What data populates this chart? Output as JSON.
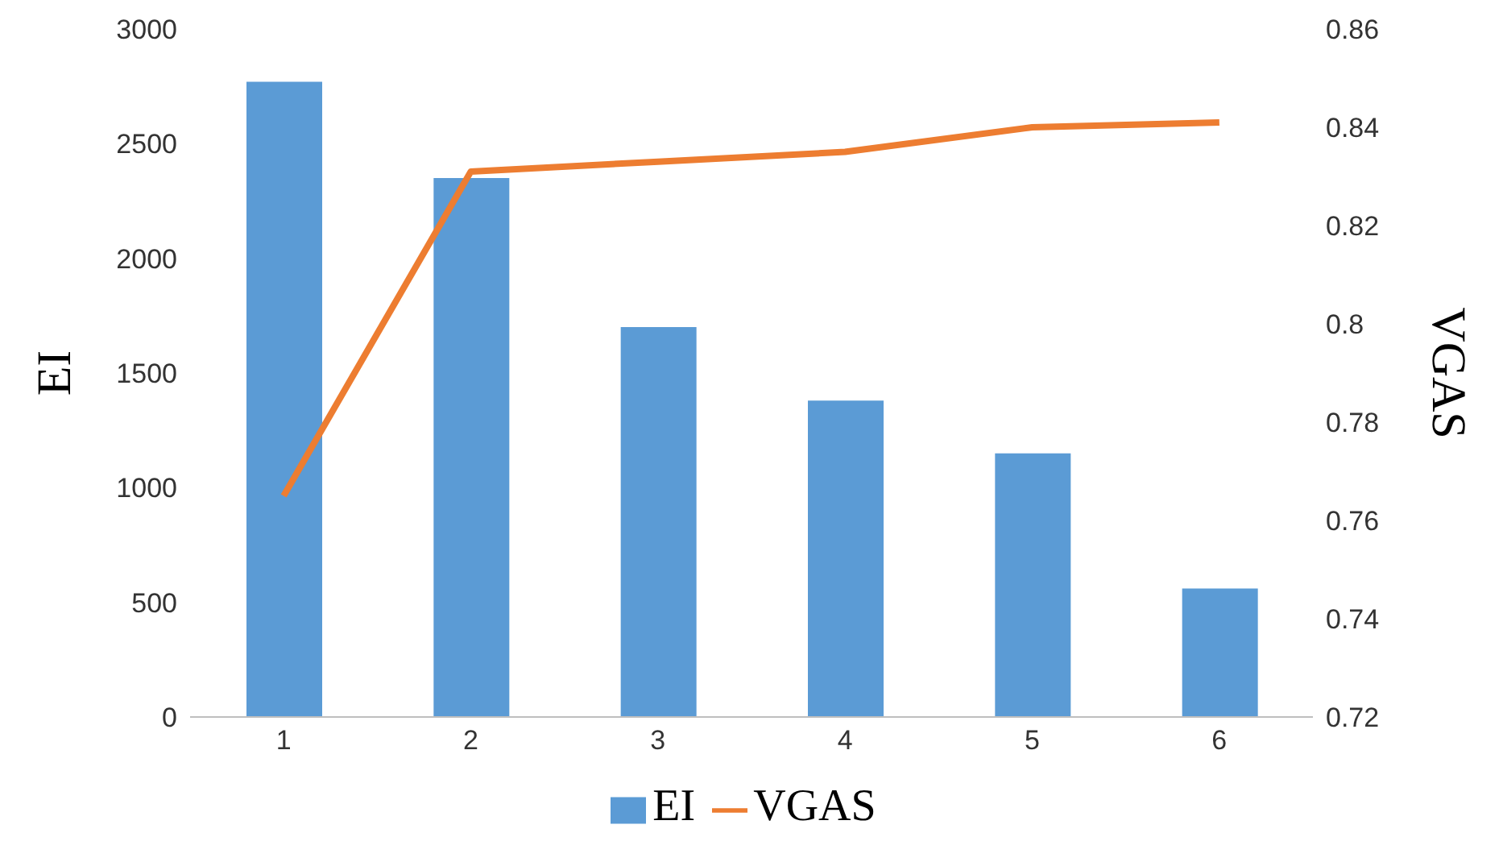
{
  "chart_data": {
    "type": "bar",
    "categories": [
      "1",
      "2",
      "3",
      "4",
      "5",
      "6"
    ],
    "xlabel": null,
    "ylabel": "EI",
    "y2label": "VGAS",
    "series": [
      {
        "name": "EI",
        "color": "#5b9bd5",
        "values": [
          2770,
          2350,
          1700,
          1380,
          1150,
          560
        ]
      },
      {
        "name": "VGAS",
        "type": "line",
        "axis": "y2",
        "color": "#ed7d31",
        "values": [
          0.765,
          0.831,
          0.833,
          0.835,
          0.84,
          0.841
        ]
      }
    ],
    "ylim": [
      0,
      3000
    ],
    "yticks": [
      0,
      500,
      1000,
      1500,
      2000,
      2500,
      3000
    ],
    "y2lim": [
      0.72,
      0.86
    ],
    "y2ticks": [
      0.72,
      0.74,
      0.76,
      0.78,
      0.8,
      0.82,
      0.84,
      0.86
    ],
    "legend": "bottom",
    "grid": false,
    "marker": "none",
    "line_style": "solid"
  }
}
